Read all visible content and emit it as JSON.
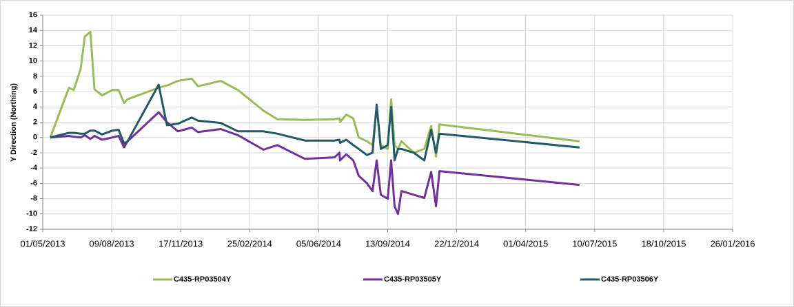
{
  "chart_data": {
    "type": "line",
    "y_label": "Y Direction (Northing)",
    "x": [
      "12/05/2013",
      "08/06/2013",
      "15/06/2013",
      "25/06/2013",
      "01/07/2013",
      "09/07/2013",
      "15/07/2013",
      "26/07/2013",
      "10/08/2013",
      "19/08/2013",
      "27/08/2013",
      "01/09/2013",
      "16/10/2013",
      "28/10/2013",
      "13/11/2013",
      "03/12/2013",
      "12/12/2013",
      "14/01/2014",
      "08/02/2014",
      "17/03/2014",
      "06/04/2014",
      "16/05/2014",
      "28/06/2014",
      "05/07/2014",
      "06/07/2014",
      "15/07/2014",
      "25/07/2014",
      "02/08/2014",
      "14/08/2014",
      "22/08/2014",
      "28/08/2014",
      "03/09/2014",
      "13/09/2014",
      "18/09/2014",
      "23/09/2014",
      "28/09/2014",
      "03/10/2014",
      "21/10/2014",
      "05/11/2014",
      "15/11/2014",
      "22/11/2014",
      "27/11/2014",
      "18/06/2015"
    ],
    "series": [
      {
        "name": "C435-RP03504Y",
        "color": "#9bbb59",
        "values": [
          0,
          6.5,
          6.2,
          9,
          13.2,
          13.8,
          6.3,
          5.5,
          6.2,
          6.2,
          4.5,
          5,
          6.5,
          6.8,
          7.4,
          7.7,
          6.7,
          7.4,
          6.2,
          3.5,
          2.4,
          2.3,
          2.4,
          2.5,
          2,
          3,
          2.5,
          0,
          -0.5,
          -1,
          4,
          -1,
          -1.5,
          5,
          -1,
          -1.5,
          -0.5,
          -2,
          -1.5,
          1.5,
          -2.5,
          1.7,
          -0.5
        ]
      },
      {
        "name": "C435-RP03505Y",
        "color": "#7030a0",
        "values": [
          0,
          0.2,
          0.1,
          0,
          0.3,
          -0.2,
          0.2,
          -0.3,
          0,
          0.2,
          -1.3,
          -0.5,
          3.3,
          2,
          0.8,
          1.3,
          0.7,
          1.1,
          0.3,
          -1.6,
          -1,
          -2.8,
          -2.6,
          -2,
          -3,
          -2.2,
          -3,
          -5,
          -6,
          -7,
          -3,
          -7.5,
          -8,
          -3,
          -9,
          -10,
          -7,
          -7.5,
          -7.9,
          -4.5,
          -9,
          -4.4,
          -6.2
        ]
      },
      {
        "name": "C435-RP03506Y",
        "color": "#215968",
        "values": [
          0,
          0.6,
          0.6,
          0.5,
          0.5,
          0.9,
          0.9,
          0.4,
          0.9,
          1,
          -0.8,
          -0.5,
          6.9,
          1.6,
          1.8,
          2.6,
          2.2,
          1.9,
          0.8,
          0.8,
          0.5,
          -0.4,
          -0.4,
          -0.3,
          -0.7,
          -0.3,
          -1,
          -1.5,
          -2.3,
          -2,
          4.3,
          -1.5,
          -1,
          4,
          -3,
          -1.5,
          -1.5,
          -2,
          -3,
          1,
          -2,
          0.5,
          -1.3
        ]
      }
    ],
    "xlim": [
      "01/05/2013",
      "26/01/2016"
    ],
    "xticks": [
      "01/05/2013",
      "09/08/2013",
      "17/11/2013",
      "25/02/2014",
      "05/06/2014",
      "13/09/2014",
      "22/12/2014",
      "01/04/2015",
      "10/07/2015",
      "18/10/2015",
      "26/01/2016"
    ],
    "ylim": [
      -12,
      16
    ],
    "yticks": [
      -12,
      -10,
      -8,
      -6,
      -4,
      -2,
      0,
      2,
      4,
      6,
      8,
      10,
      12,
      14,
      16
    ],
    "grid": true,
    "legend": "bottom"
  }
}
